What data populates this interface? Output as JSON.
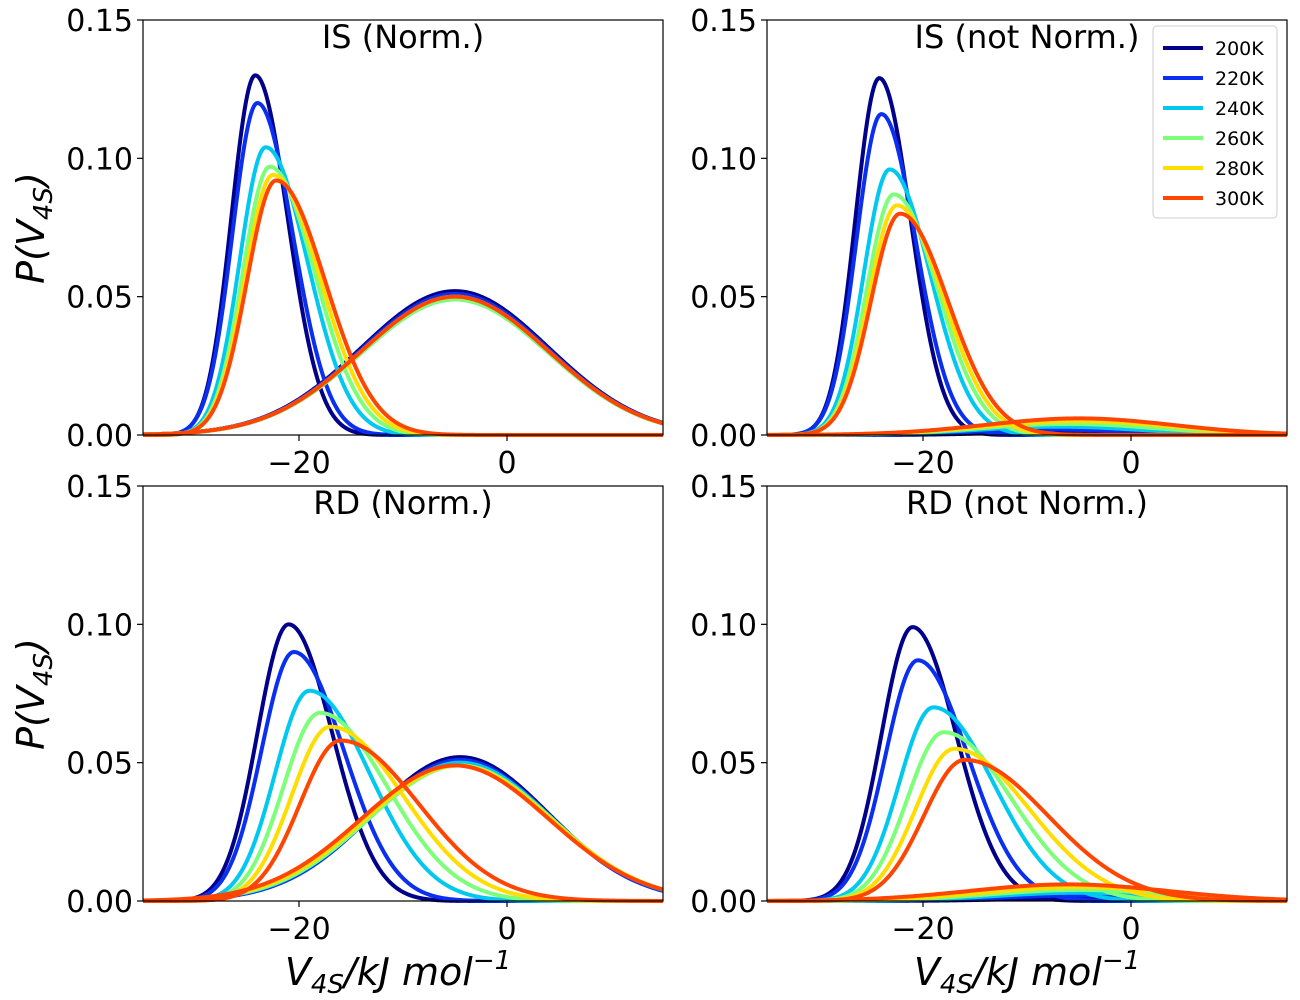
{
  "chart_data": [
    {
      "type": "line",
      "title": "IS (Norm.)",
      "xlabel": "V_4S/kJ mol^-1",
      "ylabel": "P(V_4S)",
      "xlim": [
        -35,
        15
      ],
      "ylim": [
        0,
        0.15
      ],
      "xticks": [
        "−20",
        "0"
      ],
      "yticks": [
        "0.00",
        "0.05",
        "0.10",
        "0.15"
      ],
      "series": [
        {
          "name": "200K",
          "color": "#00008b",
          "peak1": {
            "mu": -24.2,
            "left_sd": 2.3,
            "right_sd": 3.1,
            "height": 0.13
          },
          "peak2": {
            "mu": -5.0,
            "sd": 9.0,
            "height": 0.052
          }
        },
        {
          "name": "220K",
          "color": "#0a2ff0",
          "peak1": {
            "mu": -24.0,
            "left_sd": 2.4,
            "right_sd": 3.4,
            "height": 0.12
          },
          "peak2": {
            "mu": -5.0,
            "sd": 9.0,
            "height": 0.051
          }
        },
        {
          "name": "240K",
          "color": "#00c8ee",
          "peak1": {
            "mu": -23.2,
            "left_sd": 2.5,
            "right_sd": 4.0,
            "height": 0.104
          },
          "peak2": {
            "mu": -5.0,
            "sd": 9.0,
            "height": 0.049
          }
        },
        {
          "name": "260K",
          "color": "#7dff7a",
          "peak1": {
            "mu": -22.8,
            "left_sd": 2.6,
            "right_sd": 4.3,
            "height": 0.097
          },
          "peak2": {
            "mu": -5.0,
            "sd": 9.0,
            "height": 0.049
          }
        },
        {
          "name": "280K",
          "color": "#ffdd00",
          "peak1": {
            "mu": -22.5,
            "left_sd": 2.7,
            "right_sd": 4.5,
            "height": 0.094
          },
          "peak2": {
            "mu": -5.0,
            "sd": 9.0,
            "height": 0.05
          }
        },
        {
          "name": "300K",
          "color": "#ff4500",
          "peak1": {
            "mu": -22.2,
            "left_sd": 2.8,
            "right_sd": 4.7,
            "height": 0.092
          },
          "peak2": {
            "mu": -5.0,
            "sd": 9.0,
            "height": 0.05
          }
        }
      ]
    },
    {
      "type": "line",
      "title": "IS (not Norm.)",
      "xlabel": "V_4S/kJ mol^-1",
      "ylabel": "P(V_4S)",
      "xlim": [
        -35,
        15
      ],
      "ylim": [
        0,
        0.15
      ],
      "xticks": [
        "−20",
        "0"
      ],
      "yticks": [
        "0.00",
        "0.05",
        "0.10",
        "0.15"
      ],
      "series": [
        {
          "name": "200K",
          "color": "#00008b",
          "peak1": {
            "mu": -24.2,
            "left_sd": 2.3,
            "right_sd": 3.0,
            "height": 0.129
          },
          "peak2": {
            "mu": -8.0,
            "sd": 6.0,
            "height": 0.001
          }
        },
        {
          "name": "220K",
          "color": "#0a2ff0",
          "peak1": {
            "mu": -24.0,
            "left_sd": 2.4,
            "right_sd": 3.3,
            "height": 0.116
          },
          "peak2": {
            "mu": -8.0,
            "sd": 7.0,
            "height": 0.002
          }
        },
        {
          "name": "240K",
          "color": "#00c8ee",
          "peak1": {
            "mu": -23.2,
            "left_sd": 2.5,
            "right_sd": 3.9,
            "height": 0.096
          },
          "peak2": {
            "mu": -7.0,
            "sd": 8.0,
            "height": 0.003
          }
        },
        {
          "name": "260K",
          "color": "#7dff7a",
          "peak1": {
            "mu": -22.8,
            "left_sd": 2.6,
            "right_sd": 4.2,
            "height": 0.087
          },
          "peak2": {
            "mu": -6.0,
            "sd": 8.5,
            "height": 0.004
          }
        },
        {
          "name": "280K",
          "color": "#ffdd00",
          "peak1": {
            "mu": -22.5,
            "left_sd": 2.7,
            "right_sd": 4.4,
            "height": 0.083
          },
          "peak2": {
            "mu": -5.0,
            "sd": 9.0,
            "height": 0.005
          }
        },
        {
          "name": "300K",
          "color": "#ff4500",
          "peak1": {
            "mu": -22.2,
            "left_sd": 2.8,
            "right_sd": 4.6,
            "height": 0.08
          },
          "peak2": {
            "mu": -5.0,
            "sd": 9.0,
            "height": 0.006
          }
        }
      ],
      "legend": {
        "location": "top-right",
        "entries": [
          "200K",
          "220K",
          "240K",
          "260K",
          "280K",
          "300K"
        ]
      }
    },
    {
      "type": "line",
      "title": "RD (Norm.)",
      "xlabel": "V_4S/kJ mol^-1",
      "ylabel": "P(V_4S)",
      "xlim": [
        -35,
        15
      ],
      "ylim": [
        0,
        0.15
      ],
      "xticks": [
        "−20",
        "0"
      ],
      "yticks": [
        "0.00",
        "0.05",
        "0.10",
        "0.15"
      ],
      "series": [
        {
          "name": "200K",
          "color": "#00008b",
          "peak1": {
            "mu": -21.0,
            "left_sd": 3.0,
            "right_sd": 4.2,
            "height": 0.1
          },
          "peak2": {
            "mu": -4.5,
            "sd": 8.5,
            "height": 0.052
          }
        },
        {
          "name": "220K",
          "color": "#0a2ff0",
          "peak1": {
            "mu": -20.5,
            "left_sd": 3.1,
            "right_sd": 4.8,
            "height": 0.09
          },
          "peak2": {
            "mu": -4.5,
            "sd": 8.5,
            "height": 0.051
          }
        },
        {
          "name": "240K",
          "color": "#00c8ee",
          "peak1": {
            "mu": -19.0,
            "left_sd": 3.3,
            "right_sd": 5.8,
            "height": 0.076
          },
          "peak2": {
            "mu": -4.5,
            "sd": 8.7,
            "height": 0.05
          }
        },
        {
          "name": "260K",
          "color": "#7dff7a",
          "peak1": {
            "mu": -18.0,
            "left_sd": 3.5,
            "right_sd": 6.5,
            "height": 0.068
          },
          "peak2": {
            "mu": -4.5,
            "sd": 8.8,
            "height": 0.049
          }
        },
        {
          "name": "280K",
          "color": "#ffdd00",
          "peak1": {
            "mu": -17.0,
            "left_sd": 3.7,
            "right_sd": 7.0,
            "height": 0.063
          },
          "peak2": {
            "mu": -4.7,
            "sd": 8.9,
            "height": 0.049
          }
        },
        {
          "name": "300K",
          "color": "#ff4500",
          "peak1": {
            "mu": -16.0,
            "left_sd": 3.9,
            "right_sd": 7.5,
            "height": 0.058
          },
          "peak2": {
            "mu": -5.0,
            "sd": 9.0,
            "height": 0.049
          }
        }
      ]
    },
    {
      "type": "line",
      "title": "RD (not Norm.)",
      "xlabel": "V_4S/kJ mol^-1",
      "ylabel": "P(V_4S)",
      "xlim": [
        -35,
        15
      ],
      "ylim": [
        0,
        0.15
      ],
      "xticks": [
        "−20",
        "0"
      ],
      "yticks": [
        "0.00",
        "0.05",
        "0.10",
        "0.15"
      ],
      "series": [
        {
          "name": "200K",
          "color": "#00008b",
          "peak1": {
            "mu": -21.0,
            "left_sd": 3.0,
            "right_sd": 4.2,
            "height": 0.099
          },
          "peak2": {
            "mu": -5.0,
            "sd": 7.0,
            "height": 0.001
          }
        },
        {
          "name": "220K",
          "color": "#0a2ff0",
          "peak1": {
            "mu": -20.5,
            "left_sd": 3.1,
            "right_sd": 4.8,
            "height": 0.087
          },
          "peak2": {
            "mu": -5.0,
            "sd": 7.5,
            "height": 0.002
          }
        },
        {
          "name": "240K",
          "color": "#00c8ee",
          "peak1": {
            "mu": -19.0,
            "left_sd": 3.3,
            "right_sd": 5.8,
            "height": 0.07
          },
          "peak2": {
            "mu": -5.0,
            "sd": 8.0,
            "height": 0.003
          }
        },
        {
          "name": "260K",
          "color": "#7dff7a",
          "peak1": {
            "mu": -18.0,
            "left_sd": 3.5,
            "right_sd": 6.5,
            "height": 0.061
          },
          "peak2": {
            "mu": -5.0,
            "sd": 8.5,
            "height": 0.004
          }
        },
        {
          "name": "280K",
          "color": "#ffdd00",
          "peak1": {
            "mu": -17.0,
            "left_sd": 3.7,
            "right_sd": 7.2,
            "height": 0.055
          },
          "peak2": {
            "mu": -5.0,
            "sd": 9.0,
            "height": 0.005
          }
        },
        {
          "name": "300K",
          "color": "#ff4500",
          "peak1": {
            "mu": -16.0,
            "left_sd": 3.9,
            "right_sd": 8.0,
            "height": 0.051
          },
          "peak2": {
            "mu": -6.0,
            "sd": 9.5,
            "height": 0.006
          }
        }
      ]
    }
  ]
}
